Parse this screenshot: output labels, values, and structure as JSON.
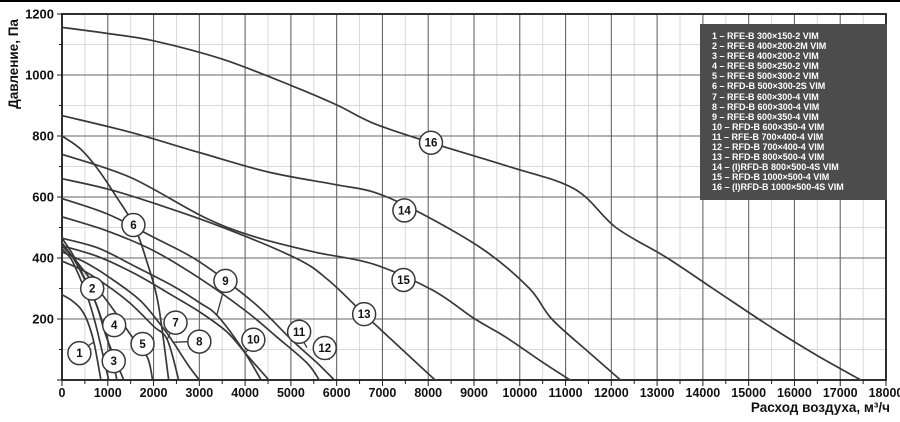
{
  "axes": {
    "x_title": "Расход воздуха, м³/ч",
    "y_title": "Давление, Па"
  },
  "chart_data": {
    "type": "line",
    "title": "",
    "xlabel": "Расход воздуха, м³/ч",
    "ylabel": "Давление, Па",
    "xlim": [
      0,
      18000
    ],
    "ylim": [
      0,
      1200
    ],
    "x_major_step": 1000,
    "x_minor_step": 500,
    "y_major_step": 200,
    "y_minor_step": 100,
    "grid": "on",
    "legend_position": "top-right",
    "colors": {
      "curve": "#383838",
      "major_grid": "#666666",
      "minor_grid": "#d9d9d9",
      "frame": "#1a1a1a",
      "legend_bg": "#4c4c4c",
      "legend_text": "#ffffff"
    },
    "series": [
      {
        "num": 1,
        "name": "RFE-B 300×150-2 VIM",
        "points": [
          [
            0,
            280
          ],
          [
            200,
            262
          ],
          [
            400,
            235
          ],
          [
            550,
            195
          ],
          [
            700,
            122
          ],
          [
            850,
            0
          ]
        ],
        "label_at": [
          380,
          88
        ],
        "leader": [
          [
            470,
            102
          ],
          [
            690,
            124
          ]
        ]
      },
      {
        "num": 2,
        "name": "RFE-B 400×200-2M VIM",
        "points": [
          [
            0,
            430
          ],
          [
            200,
            396
          ],
          [
            400,
            332
          ],
          [
            580,
            262
          ],
          [
            760,
            168
          ],
          [
            1020,
            0
          ]
        ],
        "label_at": [
          660,
          300
        ],
        "leader": [
          [
            620,
            282
          ],
          [
            575,
            262
          ]
        ]
      },
      {
        "num": 3,
        "name": "RFE-B 400×200-2 VIM",
        "points": [
          [
            0,
            465
          ],
          [
            250,
            408
          ],
          [
            520,
            325
          ],
          [
            800,
            228
          ],
          [
            1050,
            102
          ],
          [
            1200,
            0
          ]
        ],
        "label_at": [
          1130,
          62
        ],
        "leader": [
          [
            1095,
            80
          ],
          [
            1040,
            100
          ]
        ]
      },
      {
        "num": 4,
        "name": "RFE-B 500×250-2 VIM",
        "points": [
          [
            0,
            450
          ],
          [
            250,
            398
          ],
          [
            500,
            328
          ],
          [
            750,
            248
          ],
          [
            950,
            150
          ],
          [
            1150,
            72
          ],
          [
            1350,
            0
          ]
        ],
        "label_at": [
          1140,
          180
        ],
        "leader": [
          [
            1060,
            168
          ],
          [
            950,
            150
          ]
        ]
      },
      {
        "num": 5,
        "name": "RFE-B 500×300-2 VIM",
        "points": [
          [
            0,
            440
          ],
          [
            300,
            392
          ],
          [
            700,
            315
          ],
          [
            1100,
            235
          ],
          [
            1500,
            148
          ],
          [
            1860,
            76
          ],
          [
            1980,
            0
          ]
        ],
        "label_at": [
          1760,
          118
        ],
        "leader": [
          [
            1720,
            98
          ],
          [
            1860,
            78
          ]
        ]
      },
      {
        "num": 6,
        "name": "RFD-B 500×300-2S VIM",
        "points": [
          [
            0,
            800
          ],
          [
            400,
            758
          ],
          [
            800,
            688
          ],
          [
            1200,
            598
          ],
          [
            1580,
            505
          ],
          [
            1850,
            390
          ],
          [
            2100,
            252
          ],
          [
            2330,
            0
          ]
        ],
        "label_at": [
          1560,
          508
        ],
        "leader": null
      },
      {
        "num": 7,
        "name": "RFE-B 600×300-4 VIM",
        "points": [
          [
            0,
            390
          ],
          [
            500,
            356
          ],
          [
            1000,
            308
          ],
          [
            1500,
            250
          ],
          [
            2000,
            176
          ],
          [
            2300,
            132
          ],
          [
            2550,
            0
          ]
        ],
        "label_at": [
          2480,
          188
        ],
        "leader": [
          [
            2410,
            168
          ],
          [
            2300,
            134
          ]
        ]
      },
      {
        "num": 8,
        "name": "RFD-B 600×300-4 VIM",
        "points": [
          [
            0,
            420
          ],
          [
            500,
            386
          ],
          [
            1000,
            340
          ],
          [
            1700,
            262
          ],
          [
            2200,
            172
          ],
          [
            2430,
            124
          ],
          [
            2760,
            48
          ],
          [
            3000,
            0
          ]
        ],
        "label_at": [
          3000,
          126
        ],
        "leader": [
          [
            2840,
            126
          ],
          [
            2450,
            124
          ]
        ]
      },
      {
        "num": 9,
        "name": "RFE-B 600×350-4 VIM",
        "points": [
          [
            0,
            465
          ],
          [
            800,
            432
          ],
          [
            1600,
            372
          ],
          [
            2400,
            310
          ],
          [
            3000,
            254
          ],
          [
            3400,
            210
          ],
          [
            3950,
            100
          ],
          [
            4350,
            0
          ]
        ],
        "label_at": [
          3570,
          325
        ],
        "leader": [
          [
            3540,
            300
          ],
          [
            3380,
            212
          ]
        ]
      },
      {
        "num": 10,
        "name": "RFD-B 600×350-4 VIM",
        "points": [
          [
            0,
            440
          ],
          [
            800,
            404
          ],
          [
            1600,
            348
          ],
          [
            2400,
            278
          ],
          [
            3000,
            224
          ],
          [
            3600,
            158
          ],
          [
            4050,
            80
          ],
          [
            4520,
            0
          ]
        ],
        "label_at": [
          4180,
          132
        ],
        "leader": [
          [
            4130,
            112
          ],
          [
            3990,
            86
          ]
        ]
      },
      {
        "num": 11,
        "name": "RFE-B 700×400-4 VIM",
        "points": [
          [
            0,
            535
          ],
          [
            1000,
            488
          ],
          [
            2000,
            424
          ],
          [
            3000,
            334
          ],
          [
            4000,
            228
          ],
          [
            4700,
            140
          ],
          [
            5350,
            56
          ],
          [
            5620,
            0
          ]
        ],
        "label_at": [
          5180,
          158
        ],
        "leader": [
          [
            5230,
            138
          ],
          [
            5350,
            106
          ]
        ]
      },
      {
        "num": 12,
        "name": "RFD-B 700×400-4 VIM",
        "points": [
          [
            0,
            595
          ],
          [
            1000,
            544
          ],
          [
            2000,
            468
          ],
          [
            3000,
            388
          ],
          [
            4200,
            252
          ],
          [
            5000,
            134
          ],
          [
            5600,
            52
          ],
          [
            5950,
            0
          ]
        ],
        "label_at": [
          5740,
          105
        ],
        "leader": [
          [
            5790,
            86
          ],
          [
            5845,
            66
          ]
        ]
      },
      {
        "num": 13,
        "name": "RFD-B 800×500-4 VIM",
        "points": [
          [
            0,
            660
          ],
          [
            1000,
            626
          ],
          [
            2000,
            580
          ],
          [
            3450,
            504
          ],
          [
            5100,
            400
          ],
          [
            5800,
            330
          ],
          [
            6600,
            216
          ],
          [
            7400,
            104
          ],
          [
            8150,
            0
          ]
        ],
        "label_at": [
          6600,
          216
        ],
        "leader": null
      },
      {
        "num": 14,
        "name": "(I)RFD-B 800×500-4S VIM",
        "points": [
          [
            0,
            867
          ],
          [
            1500,
            812
          ],
          [
            3000,
            746
          ],
          [
            4500,
            682
          ],
          [
            6000,
            640
          ],
          [
            6830,
            615
          ],
          [
            7800,
            550
          ],
          [
            9200,
            428
          ],
          [
            10200,
            302
          ],
          [
            10700,
            200
          ],
          [
            11500,
            92
          ],
          [
            12200,
            0
          ]
        ],
        "label_at": [
          7480,
          556
        ],
        "leader": null
      },
      {
        "num": 15,
        "name": "RFD-B 1000×500-4 VIM",
        "points": [
          [
            0,
            740
          ],
          [
            1500,
            664
          ],
          [
            3100,
            534
          ],
          [
            4200,
            470
          ],
          [
            5500,
            420
          ],
          [
            6800,
            380
          ],
          [
            8100,
            294
          ],
          [
            9000,
            202
          ],
          [
            9700,
            140
          ],
          [
            10500,
            58
          ],
          [
            11100,
            0
          ]
        ],
        "label_at": [
          7460,
          328
        ],
        "leader": null
      },
      {
        "num": 16,
        "name": "(I)RFD-B 1000×500-4S VIM",
        "points": [
          [
            0,
            1156
          ],
          [
            1000,
            1136
          ],
          [
            2000,
            1112
          ],
          [
            3500,
            1052
          ],
          [
            5000,
            966
          ],
          [
            6000,
            902
          ],
          [
            6830,
            840
          ],
          [
            8100,
            776
          ],
          [
            9800,
            698
          ],
          [
            11200,
            626
          ],
          [
            12100,
            500
          ],
          [
            13200,
            402
          ],
          [
            14200,
            302
          ],
          [
            15500,
            172
          ],
          [
            16500,
            80
          ],
          [
            17450,
            0
          ]
        ],
        "label_at": [
          8060,
          778
        ],
        "leader": null
      }
    ],
    "x_tick_labels": [
      "0",
      "1000",
      "2000",
      "3000",
      "4000",
      "5000",
      "6000",
      "7000",
      "8000",
      "9000",
      "10000",
      "11000",
      "12000",
      "13000",
      "14000",
      "15000",
      "16000",
      "17000",
      "18000"
    ],
    "y_tick_labels": [
      "200",
      "400",
      "600",
      "800",
      "1000",
      "1200"
    ]
  }
}
